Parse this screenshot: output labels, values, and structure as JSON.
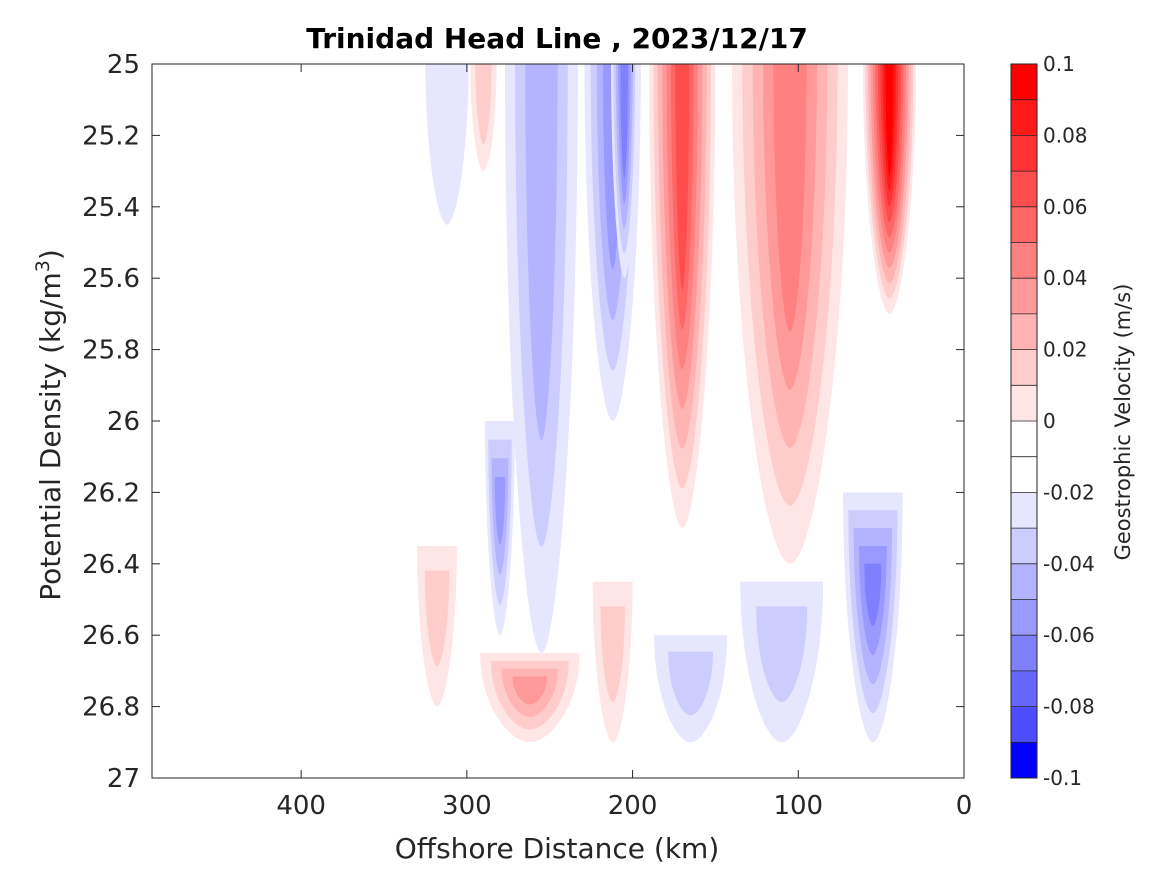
{
  "chart_data": {
    "type": "heatmap",
    "title": "Trinidad Head Line , 2023/12/17",
    "xlabel": "Offshore Distance (km)",
    "ylabel_main": "Potential Density (kg/m",
    "ylabel_sup": "3",
    "ylabel_close": ")",
    "xlim": [
      490,
      0
    ],
    "ylim": [
      25,
      27
    ],
    "x_reversed": true,
    "y_reversed": true,
    "xticks": [
      400,
      300,
      200,
      100,
      0
    ],
    "xtick_labels": [
      "400",
      "300",
      "200",
      "100",
      "0"
    ],
    "yticks": [
      25,
      25.2,
      25.4,
      25.6,
      25.8,
      26,
      26.2,
      26.4,
      26.6,
      26.8,
      27
    ],
    "ytick_labels": [
      "25",
      "25.2",
      "25.4",
      "25.6",
      "25.8",
      "26",
      "26.2",
      "26.4",
      "26.6",
      "26.8",
      "27"
    ],
    "grid": false,
    "colorbar": {
      "label": "Geostrophic Velocity (m/s)",
      "range": [
        -0.1,
        0.1
      ],
      "ticks": [
        0.1,
        0.08,
        0.06,
        0.04,
        0.02,
        0,
        -0.02,
        -0.04,
        -0.06,
        -0.08,
        -0.1
      ],
      "tick_labels": [
        "0.1",
        "0.08",
        "0.06",
        "0.04",
        "0.02",
        "0",
        "-0.02",
        "-0.04",
        "-0.06",
        "-0.08",
        "-0.1"
      ],
      "levels": [
        {
          "lo": 0.09,
          "hi": 0.1,
          "color": "#ff0000"
        },
        {
          "lo": 0.08,
          "hi": 0.09,
          "color": "#ff1a1a"
        },
        {
          "lo": 0.07,
          "hi": 0.08,
          "color": "#ff3333"
        },
        {
          "lo": 0.06,
          "hi": 0.07,
          "color": "#ff4d4d"
        },
        {
          "lo": 0.05,
          "hi": 0.06,
          "color": "#ff6666"
        },
        {
          "lo": 0.04,
          "hi": 0.05,
          "color": "#ff8080"
        },
        {
          "lo": 0.03,
          "hi": 0.04,
          "color": "#ff9999"
        },
        {
          "lo": 0.02,
          "hi": 0.03,
          "color": "#ffb3b3"
        },
        {
          "lo": 0.01,
          "hi": 0.02,
          "color": "#ffcccc"
        },
        {
          "lo": 0.0,
          "hi": 0.01,
          "color": "#ffe6e6"
        },
        {
          "lo": -0.01,
          "hi": 0.0,
          "color": "#ffffff"
        },
        {
          "lo": -0.02,
          "hi": -0.01,
          "color": "#ffffff"
        },
        {
          "lo": -0.03,
          "hi": -0.02,
          "color": "#e6e6ff"
        },
        {
          "lo": -0.04,
          "hi": -0.03,
          "color": "#ccccff"
        },
        {
          "lo": -0.05,
          "hi": -0.04,
          "color": "#b3b3ff"
        },
        {
          "lo": -0.06,
          "hi": -0.05,
          "color": "#9999ff"
        },
        {
          "lo": -0.07,
          "hi": -0.06,
          "color": "#8080ff"
        },
        {
          "lo": -0.08,
          "hi": -0.07,
          "color": "#6666ff"
        },
        {
          "lo": -0.09,
          "hi": -0.08,
          "color": "#4d4dff"
        },
        {
          "lo": -0.1,
          "hi": -0.09,
          "color": "#0000ff"
        }
      ]
    },
    "data_extent": {
      "x": [
        330,
        28
      ],
      "y": [
        25,
        26.9
      ]
    },
    "features": [
      {
        "name": "negative-band-310km",
        "x": 312,
        "x_halfwidth": 13,
        "y_top": 25,
        "y_bottom": 25.45,
        "value": -0.03
      },
      {
        "name": "positive-band-290km",
        "x": 290,
        "x_halfwidth": 8,
        "y_top": 25,
        "y_bottom": 25.3,
        "value": 0.015
      },
      {
        "name": "negative-band-255km",
        "x": 255,
        "x_halfwidth": 22,
        "y_top": 25,
        "y_bottom": 26.65,
        "value": -0.045
      },
      {
        "name": "negative-core-280km",
        "x": 280,
        "x_halfwidth": 9,
        "y_top": 26.0,
        "y_bottom": 26.6,
        "value": -0.055
      },
      {
        "name": "negative-band-210km",
        "x": 212,
        "x_halfwidth": 17,
        "y_top": 25,
        "y_bottom": 26.0,
        "value": -0.06
      },
      {
        "name": "negative-core-205km",
        "x": 205,
        "x_halfwidth": 8,
        "y_top": 25,
        "y_bottom": 25.6,
        "value": -0.07
      },
      {
        "name": "positive-jet-170km",
        "x": 170,
        "x_halfwidth": 20,
        "y_top": 25,
        "y_bottom": 26.3,
        "value": 0.07
      },
      {
        "name": "positive-band-100km",
        "x": 105,
        "x_halfwidth": 35,
        "y_top": 25,
        "y_bottom": 26.4,
        "value": 0.05
      },
      {
        "name": "positive-jet-45km",
        "x": 45,
        "x_halfwidth": 16,
        "y_top": 25,
        "y_bottom": 25.7,
        "value": 0.1
      },
      {
        "name": "negative-deep-coast",
        "x": 55,
        "x_halfwidth": 18,
        "y_top": 26.2,
        "y_bottom": 26.9,
        "value": -0.07
      },
      {
        "name": "negative-deep-100km",
        "x": 110,
        "x_halfwidth": 25,
        "y_top": 26.45,
        "y_bottom": 26.9,
        "value": -0.035
      },
      {
        "name": "negative-deep-170km",
        "x": 165,
        "x_halfwidth": 22,
        "y_top": 26.6,
        "y_bottom": 26.9,
        "value": -0.035
      },
      {
        "name": "positive-deep-260km",
        "x": 262,
        "x_halfwidth": 30,
        "y_top": 26.65,
        "y_bottom": 26.9,
        "value": 0.035
      },
      {
        "name": "positive-deep-210km",
        "x": 212,
        "x_halfwidth": 12,
        "y_top": 26.45,
        "y_bottom": 26.9,
        "value": 0.015
      },
      {
        "name": "positive-deep-320km",
        "x": 318,
        "x_halfwidth": 12,
        "y_top": 26.35,
        "y_bottom": 26.8,
        "value": 0.015
      }
    ]
  }
}
